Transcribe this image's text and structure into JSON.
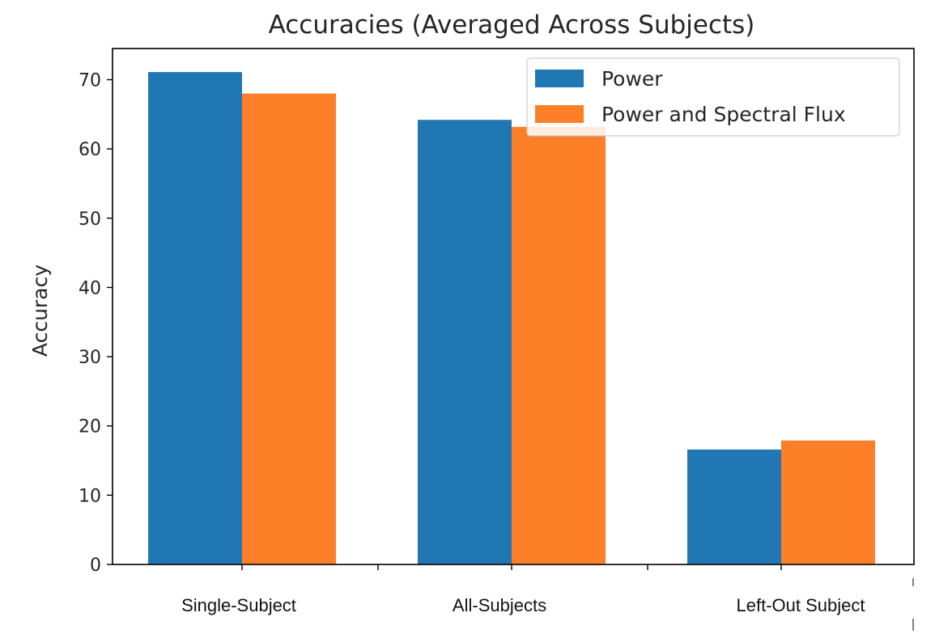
{
  "chart_data": {
    "type": "bar",
    "title": "Accuracies (Averaged Across Subjects)",
    "xlabel": "",
    "ylabel": "Accuracy",
    "categories": [
      "Single-Subject",
      "All-Subjects",
      "Left-Out Subject"
    ],
    "series": [
      {
        "name": "Power",
        "values": [
          71.1,
          64.2,
          16.6
        ],
        "color": "#2077b4"
      },
      {
        "name": "Power and Spectral Flux",
        "values": [
          68.0,
          63.2,
          17.9
        ],
        "color": "#fd7f28"
      }
    ],
    "yticks": [
      0,
      10,
      20,
      30,
      40,
      50,
      60,
      70
    ],
    "ylim": [
      0,
      74.5
    ],
    "grid": false,
    "legend_position": "top-right"
  }
}
